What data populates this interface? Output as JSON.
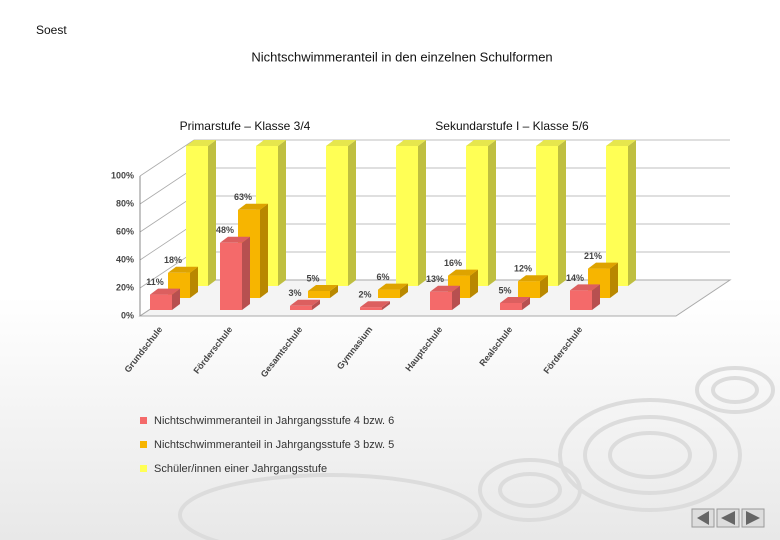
{
  "header": {
    "place": "Soest"
  },
  "chart_data": {
    "type": "bar3d",
    "title": "Nichtschwimmeranteil in den einzelnen Schulformen",
    "groups": [
      "Primarstufe –  Klasse 3/4",
      "Sekundarstufe I –  Klasse 5/6"
    ],
    "categories": [
      "Grundschule",
      "Förderschule",
      "Gesamtschule",
      "Gymnasium",
      "Hauptschule",
      "Realschule",
      "Förderschule"
    ],
    "series": [
      {
        "name": "Nichtschwimmeranteil in Jahrgangsstufe 4 bzw. 6",
        "color": "#f46a6a",
        "values": [
          11,
          48,
          3,
          2,
          13,
          5,
          14
        ],
        "value_labels": [
          "11%",
          "48%",
          "3%",
          "2%",
          "13%",
          "5%",
          "14%"
        ]
      },
      {
        "name": "Nichtschwimmeranteil in Jahrgangsstufe 3 bzw. 5",
        "color": "#f7b500",
        "values": [
          18,
          63,
          5,
          6,
          16,
          12,
          21
        ],
        "value_labels": [
          "18%",
          "63%",
          "5%",
          "6%",
          "16%",
          "12%",
          "21%"
        ]
      },
      {
        "name": "Schüler/innen einer Jahrgangsstufe",
        "color": "#ffff55",
        "values": [
          100,
          100,
          100,
          100,
          100,
          100,
          100
        ]
      }
    ],
    "ylim": [
      0,
      100
    ],
    "yticks": [
      {
        "value": 0,
        "label": "0%"
      },
      {
        "value": 20,
        "label": "20%"
      },
      {
        "value": 40,
        "label": "40%"
      },
      {
        "value": 60,
        "label": "60%"
      },
      {
        "value": 80,
        "label": "80%"
      },
      {
        "value": 100,
        "label": "100%"
      }
    ],
    "grid": true
  }
}
